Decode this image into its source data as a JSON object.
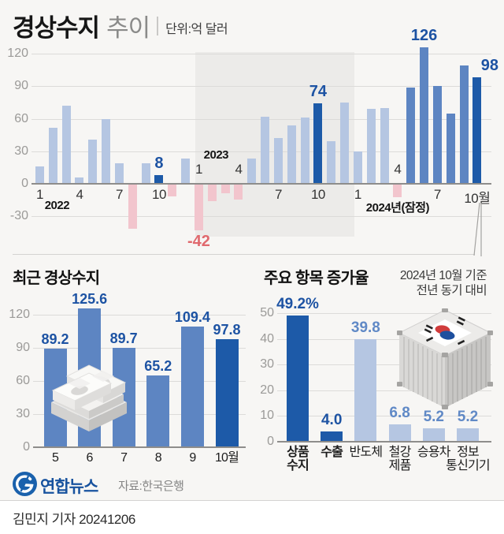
{
  "header": {
    "title": "경상수지",
    "subtitle": "추이",
    "unit": "단위:억 달러"
  },
  "palette": {
    "light": "#b5c6e2",
    "mid": "#5d85c2",
    "dark": "#1d5aa8",
    "neg": "#f2c5cd",
    "label_dark": "#1d53a3",
    "label_mid": "#6089c6",
    "label_neg": "#e0696e",
    "yonhap_blue": "#1a61ac"
  },
  "chart_data": [
    {
      "type": "bar",
      "id": "monthly-current-account",
      "title": "경상수지 추이",
      "unit": "억달러",
      "months": [
        "2022-01",
        "2022-02",
        "2022-03",
        "2022-04",
        "2022-05",
        "2022-06",
        "2022-07",
        "2022-08",
        "2022-09",
        "2022-10",
        "2022-11",
        "2022-12",
        "2023-01",
        "2023-02",
        "2023-03",
        "2023-04",
        "2023-05",
        "2023-06",
        "2023-07",
        "2023-08",
        "2023-09",
        "2023-10",
        "2023-11",
        "2023-12",
        "2024-01",
        "2024-02",
        "2024-03",
        "2024-04",
        "2024-05",
        "2024-06",
        "2024-07",
        "2024-08",
        "2024-09",
        "2024-10"
      ],
      "values": [
        16,
        52,
        72,
        6,
        41,
        60,
        19,
        -41,
        19,
        8,
        -11,
        23,
        -42,
        -15,
        -8,
        -14,
        23,
        62,
        42,
        54,
        61,
        74,
        39,
        75,
        30,
        69,
        70,
        -12,
        89,
        126,
        90,
        65,
        109,
        98
      ],
      "bar_styles": [
        "light",
        "light",
        "light",
        "light",
        "light",
        "light",
        "light",
        "neg",
        "light",
        "dark",
        "neg",
        "light",
        "neg",
        "neg",
        "neg",
        "neg",
        "light",
        "light",
        "light",
        "light",
        "light",
        "dark",
        "light",
        "light",
        "light",
        "light",
        "light",
        "neg",
        "mid",
        "mid",
        "mid",
        "mid",
        "mid",
        "dark"
      ],
      "point_labels": [
        {
          "index": 9,
          "text": "8"
        },
        {
          "index": 12,
          "text": "-42",
          "position": "below"
        },
        {
          "index": 21,
          "text": "74"
        },
        {
          "index": 29,
          "text": "126"
        },
        {
          "index": 33,
          "text": "98",
          "dx": 16
        }
      ],
      "x_ticks": [
        {
          "index": 0,
          "text": "1",
          "side": "below"
        },
        {
          "index": 3,
          "text": "4",
          "side": "below"
        },
        {
          "index": 6,
          "text": "7",
          "side": "below"
        },
        {
          "index": 9,
          "text": "10",
          "side": "below"
        },
        {
          "index": 12,
          "text": "1",
          "side": "above"
        },
        {
          "index": 15,
          "text": "4",
          "side": "above"
        },
        {
          "index": 18,
          "text": "7",
          "side": "below"
        },
        {
          "index": 21,
          "text": "10",
          "side": "below"
        },
        {
          "index": 24,
          "text": "1",
          "side": "below"
        },
        {
          "index": 27,
          "text": "4",
          "side": "above"
        },
        {
          "index": 30,
          "text": "7",
          "side": "below"
        },
        {
          "index": 33,
          "text": "10월",
          "side": "below"
        }
      ],
      "year_labels": [
        {
          "text": "2022",
          "index": 1.3,
          "side": "below"
        },
        {
          "text": "2023",
          "index": 13.3,
          "side": "above"
        },
        {
          "text": "2024년(잠정)",
          "index": 27,
          "side": "below"
        }
      ],
      "yticks": [
        120,
        90,
        60,
        30,
        0,
        -30
      ],
      "ylim": [
        -48,
        132
      ],
      "grid": true,
      "highlight_band_months": [
        "2023-01",
        "2023-12"
      ]
    },
    {
      "type": "bar",
      "id": "recent-current-account",
      "title": "최근 경상수지",
      "categories": [
        "5",
        "6",
        "7",
        "8",
        "9",
        "10월"
      ],
      "values": [
        89.2,
        125.6,
        89.7,
        65.2,
        109.4,
        97.8
      ],
      "labels": [
        "89.2",
        "125.6",
        "89.7",
        "65.2",
        "109.4",
        "97.8"
      ],
      "bar_styles": [
        "mid",
        "mid",
        "mid",
        "mid",
        "mid",
        "dark"
      ],
      "label_styles": [
        "dark",
        "dark",
        "dark",
        "dark",
        "dark",
        "dark"
      ],
      "yticks": [
        0,
        30,
        60,
        90,
        120
      ],
      "ylim": [
        0,
        130
      ],
      "grid": true
    },
    {
      "type": "bar",
      "id": "key-item-growth",
      "title": "주요 항목 증가율",
      "note_lines": [
        "2024년 10월 기준",
        "전년 동기 대비"
      ],
      "categories": [
        [
          "상품",
          "수지"
        ],
        [
          "수출"
        ],
        [
          "반도체"
        ],
        [
          "철강",
          "제품"
        ],
        [
          "승용차"
        ],
        [
          "정보",
          "통신기기"
        ]
      ],
      "values": [
        49.2,
        4.0,
        39.8,
        6.8,
        5.2,
        5.2
      ],
      "labels": [
        "49.2%",
        "4.0",
        "39.8",
        "6.8",
        "5.2",
        "5.2"
      ],
      "bar_styles": [
        "dark",
        "dark",
        "light",
        "light",
        "light",
        "light"
      ],
      "label_styles": [
        "dark",
        "dark",
        "mid",
        "mid",
        "mid",
        "mid"
      ],
      "cat_bold": [
        true,
        true,
        false,
        false,
        false,
        false
      ],
      "yticks": [
        0,
        10,
        20,
        30,
        40,
        50
      ],
      "ylim": [
        0,
        52
      ],
      "grid": true
    }
  ],
  "footer": {
    "agency": "연합뉴스",
    "source": "자료:한국은행",
    "credit": "김민지 기자 20241206"
  }
}
